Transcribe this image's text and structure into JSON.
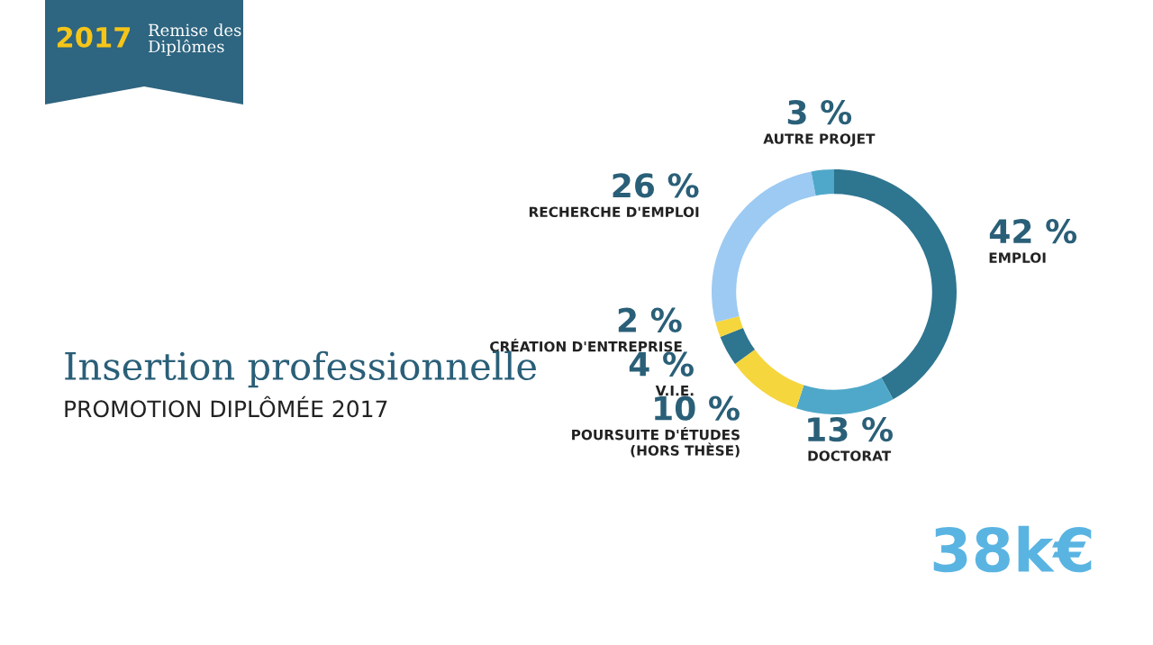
{
  "chart_data": {
    "type": "donut",
    "title": "Insertion professionnelle",
    "subtitle": "PROMOTION DIPLÔMÉE 2017",
    "categories": [
      "EMPLOI",
      "DOCTORAT",
      "POURSUITE D'ÉTUDES\n(HORS THÈSE)",
      "V.I.E.",
      "CRÉATION D'ENTREPRISE",
      "RECHERCHE D'EMPLOI",
      "AUTRE PROJET"
    ],
    "values": [
      42,
      13,
      10,
      4,
      2,
      26,
      3
    ],
    "value_labels": [
      "42 %",
      "13 %",
      "10 %",
      "4 %",
      "2 %",
      "26 %",
      "3 %"
    ],
    "colors": [
      "#2e7590",
      "#4fa8c9",
      "#f5d63d",
      "#2e7590",
      "#f5d63d",
      "#9ccaf2",
      "#4fa8c9"
    ],
    "annotations": [
      "2017",
      "Remise des\nDiplômes",
      "38k€"
    ]
  }
}
